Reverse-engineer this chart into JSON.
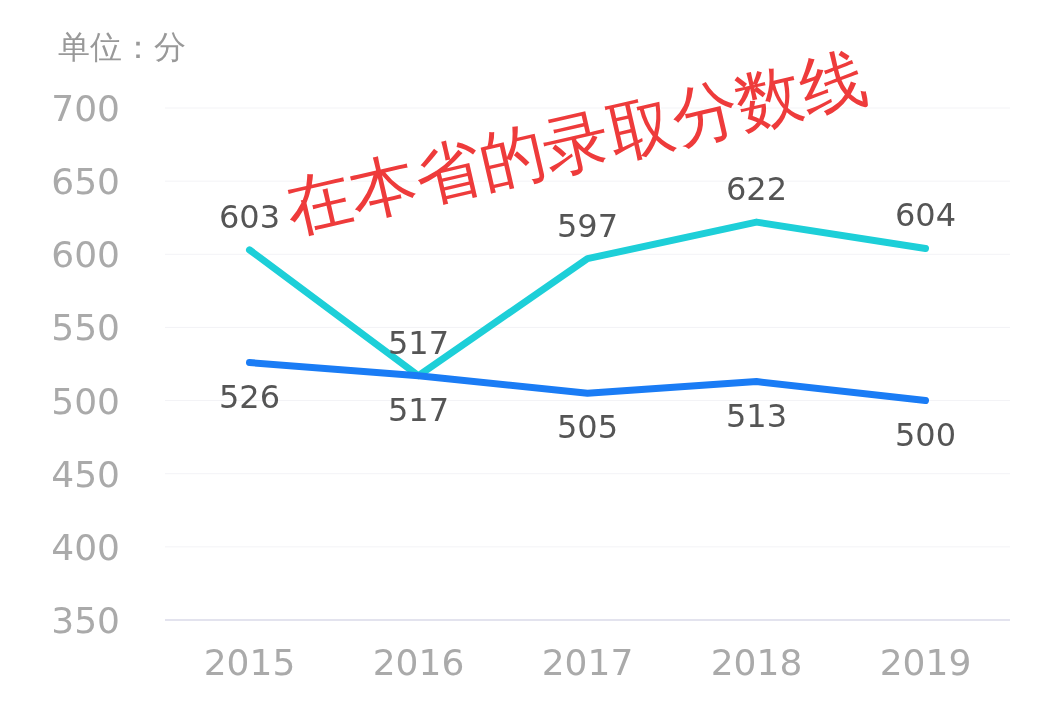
{
  "chart_data": {
    "type": "line",
    "title": "在本省的录取分数线",
    "annotations": [
      "单位：分"
    ],
    "categories": [
      "2015",
      "2016",
      "2017",
      "2018",
      "2019"
    ],
    "series": [
      {
        "color": "#1dcfd8",
        "values": [
          603,
          517,
          597,
          622,
          604
        ]
      },
      {
        "color": "#1a7cf5",
        "values": [
          526,
          517,
          505,
          513,
          500
        ]
      }
    ],
    "ylim": [
      350,
      700
    ],
    "yticks": [
      350,
      400,
      450,
      500,
      550,
      600,
      650,
      700
    ],
    "grid": "y",
    "data_labels": true,
    "marker": "none",
    "line_style": "solid"
  }
}
